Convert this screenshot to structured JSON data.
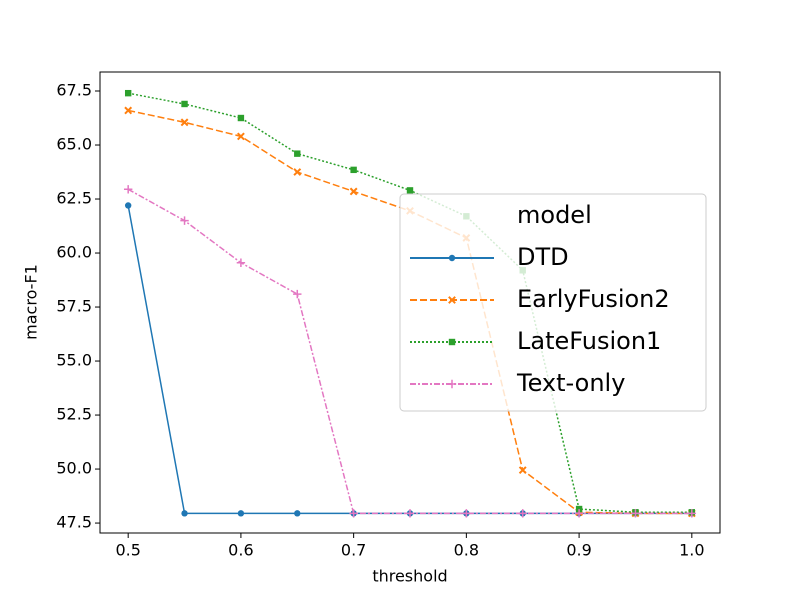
{
  "chart_data": {
    "type": "line",
    "x_label": "threshold",
    "y_label": "macro-F1",
    "x": [
      0.5,
      0.55,
      0.6,
      0.65,
      0.7,
      0.75,
      0.8,
      0.85,
      0.9,
      0.95,
      1.0
    ],
    "series": [
      {
        "name": "DTD",
        "color": "#1f77b4",
        "dash": "solid",
        "marker": "circle",
        "values": [
          62.2,
          47.95,
          47.95,
          47.95,
          47.95,
          47.95,
          47.95,
          47.95,
          47.95,
          47.95,
          47.95
        ]
      },
      {
        "name": "EarlyFusion2",
        "color": "#ff7f0e",
        "dash": "dashed",
        "marker": "x",
        "values": [
          66.6,
          66.05,
          65.4,
          63.75,
          62.85,
          61.95,
          60.7,
          49.95,
          48.0,
          47.95,
          47.95
        ]
      },
      {
        "name": "LateFusion1",
        "color": "#2ca02c",
        "dash": "dotted",
        "marker": "square",
        "values": [
          67.4,
          66.9,
          66.25,
          64.6,
          63.85,
          62.9,
          61.7,
          59.2,
          48.15,
          48.0,
          48.0
        ]
      },
      {
        "name": "Text-only",
        "color": "#e377c2",
        "dash": "dashdot",
        "marker": "plus",
        "values": [
          62.95,
          61.5,
          59.55,
          58.1,
          47.95,
          47.95,
          47.95,
          47.95,
          47.95,
          47.95,
          47.95
        ]
      }
    ],
    "legend_title": "model",
    "legend_loc": "center right",
    "xlim": [
      0.475,
      1.025
    ],
    "xticks": [
      0.5,
      0.6,
      0.7,
      0.8,
      0.9,
      {
        "value": 1.0,
        "label": "1.0"
      }
    ],
    "ylim": [
      47.04,
      68.38
    ],
    "yticks": [
      47.5,
      {
        "value": 50.0,
        "label": "50.0"
      },
      52.5,
      {
        "value": 55.0,
        "label": "55.0"
      },
      57.5,
      {
        "value": 60.0,
        "label": "60.0"
      },
      62.5,
      {
        "value": 65.0,
        "label": "65.0"
      },
      67.5
    ]
  }
}
